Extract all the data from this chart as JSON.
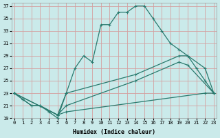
{
  "xlabel": "Humidex (Indice chaleur)",
  "bg_color": "#caeaea",
  "grid_color": "#d4a0a0",
  "line_color": "#2a7a6e",
  "xlim": [
    -0.3,
    23.3
  ],
  "ylim": [
    19,
    37.5
  ],
  "yticks": [
    19,
    21,
    23,
    25,
    27,
    29,
    31,
    33,
    35,
    37
  ],
  "xticks": [
    0,
    1,
    2,
    3,
    4,
    5,
    6,
    7,
    8,
    9,
    10,
    11,
    12,
    13,
    14,
    15,
    16,
    17,
    18,
    19,
    20,
    21,
    22,
    23
  ],
  "line1_x": [
    0,
    1,
    2,
    3,
    4,
    5,
    6,
    7,
    8,
    9,
    10,
    11,
    12,
    13,
    14,
    15,
    16,
    17,
    18,
    19,
    20,
    21,
    22,
    23
  ],
  "line1_y": [
    23,
    22,
    21,
    21,
    20,
    19,
    23,
    27,
    29,
    28,
    34,
    34,
    36,
    36,
    37,
    37,
    35,
    33,
    31,
    30,
    29,
    27,
    25,
    23
  ],
  "line2_x": [
    0,
    1,
    2,
    3,
    5,
    6,
    14,
    19,
    20,
    22,
    23
  ],
  "line2_y": [
    23,
    22,
    21,
    21,
    19.5,
    23,
    26,
    29,
    29,
    27,
    23
  ],
  "line3_x": [
    0,
    5,
    6,
    14,
    19,
    20,
    23
  ],
  "line3_y": [
    23,
    19.5,
    21,
    25,
    28,
    27.5,
    23
  ],
  "line4_x": [
    0,
    5,
    6,
    22,
    23
  ],
  "line4_y": [
    23,
    19.5,
    20,
    23,
    23
  ]
}
